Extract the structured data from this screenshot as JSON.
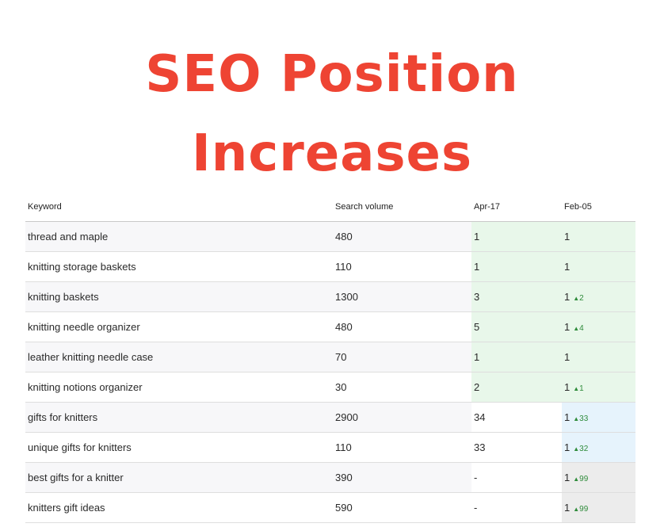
{
  "title": {
    "line1": "SEO Position",
    "line2": "Increases"
  },
  "table": {
    "headers": {
      "keyword": "Keyword",
      "volume": "Search volume",
      "apr": "Apr-17",
      "feb": "Feb-05"
    },
    "rows": [
      {
        "keyword": "thread and maple",
        "volume": "480",
        "apr": "1",
        "feb": "1",
        "change": "",
        "apr_fill": "green",
        "feb_fill": "green"
      },
      {
        "keyword": "knitting storage baskets",
        "volume": "110",
        "apr": "1",
        "feb": "1",
        "change": "",
        "apr_fill": "green",
        "feb_fill": "green"
      },
      {
        "keyword": "knitting baskets",
        "volume": "1300",
        "apr": "3",
        "feb": "1",
        "change": "2",
        "apr_fill": "green",
        "feb_fill": "green"
      },
      {
        "keyword": "knitting needle organizer",
        "volume": "480",
        "apr": "5",
        "feb": "1",
        "change": "4",
        "apr_fill": "green",
        "feb_fill": "green"
      },
      {
        "keyword": "leather knitting needle case",
        "volume": "70",
        "apr": "1",
        "feb": "1",
        "change": "",
        "apr_fill": "green",
        "feb_fill": "green"
      },
      {
        "keyword": "knitting notions organizer",
        "volume": "30",
        "apr": "2",
        "feb": "1",
        "change": "1",
        "apr_fill": "green",
        "feb_fill": "green"
      },
      {
        "keyword": "gifts for knitters",
        "volume": "2900",
        "apr": "34",
        "feb": "1",
        "change": "33",
        "apr_fill": "",
        "feb_fill": "blue"
      },
      {
        "keyword": "unique gifts for knitters",
        "volume": "110",
        "apr": "33",
        "feb": "1",
        "change": "32",
        "apr_fill": "",
        "feb_fill": "blue"
      },
      {
        "keyword": "best gifts for a knitter",
        "volume": "390",
        "apr": "-",
        "feb": "1",
        "change": "99",
        "apr_fill": "",
        "feb_fill": "gray"
      },
      {
        "keyword": "knitters gift ideas",
        "volume": "590",
        "apr": "-",
        "feb": "1",
        "change": "99",
        "apr_fill": "",
        "feb_fill": "gray"
      }
    ]
  },
  "colors": {
    "title": "#ee4433",
    "improved_green": "#e8f7ea",
    "improved_blue": "#e6f3fc",
    "new_gray": "#ececec",
    "change_text": "#2e8b3a"
  },
  "icons": {
    "change": "up-triangle-icon"
  }
}
